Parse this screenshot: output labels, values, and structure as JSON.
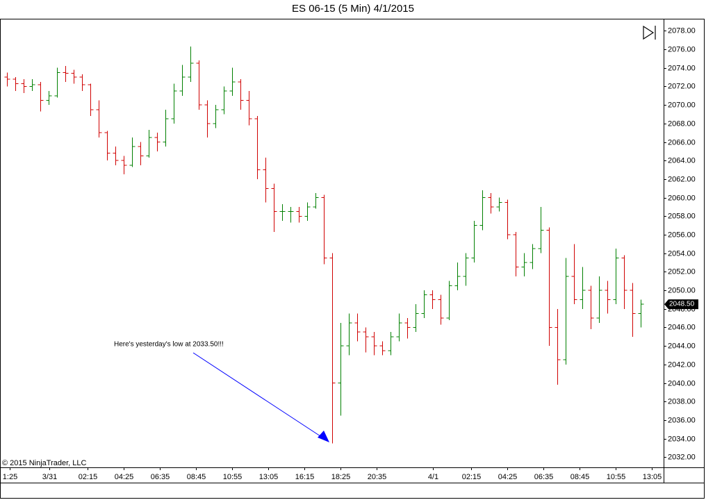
{
  "chart_data": {
    "type": "ohlc",
    "title": "ES 06-15 (5 Min)  4/1/2015",
    "copyright": "© 2015 NinjaTrader, LLC",
    "annotation": "Here's yesterday's low at 2033.50!!!",
    "up_color": "#008000",
    "down_color": "#d00000",
    "x": [
      5,
      11,
      17,
      23,
      29,
      35,
      41,
      47,
      53,
      59,
      65,
      71,
      77,
      83,
      89,
      95,
      101,
      107,
      113,
      119,
      125,
      131,
      137,
      143,
      149,
      155,
      161,
      167,
      173,
      179,
      185,
      191,
      197,
      203,
      209,
      215,
      221,
      227,
      233,
      239,
      245,
      251,
      257,
      263,
      269,
      275,
      281,
      287,
      293,
      299,
      305,
      311,
      317,
      323,
      329,
      335,
      341,
      347,
      353,
      359,
      365,
      371,
      377,
      383,
      389,
      395,
      401,
      407,
      413,
      419,
      425,
      431,
      437,
      443,
      449,
      455,
      461
    ],
    "open": [
      2073.0,
      2072.8,
      2072.3,
      2072.0,
      2072.2,
      2070.5,
      2071.0,
      2073.5,
      2073.4,
      2073.0,
      2072.2,
      2069.5,
      2067.0,
      2064.8,
      2064.0,
      2063.5,
      2065.5,
      2064.5,
      2066.5,
      2066.0,
      2068.5,
      2071.5,
      2073.0,
      2074.5,
      2070.0,
      2068.0,
      2069.5,
      2071.5,
      2072.5,
      2070.5,
      2068.5,
      2063.0,
      2061.0,
      2058.5,
      2058.5,
      2058.5,
      2058.0,
      2059.0,
      2060.0,
      2053.5,
      2040.0,
      2044.0,
      2046.5,
      2045.5,
      2045.0,
      2044.0,
      2043.5,
      2045.0,
      2046.5,
      2046.0,
      2047.5,
      2049.5,
      2049.0,
      2047.0,
      2050.5,
      2051.5,
      2053.5,
      2057.0,
      2060.0,
      2059.0,
      2059.5,
      2056.0,
      2052.5,
      2053.0,
      2054.5,
      2056.5,
      2046.0,
      2042.5,
      2051.5,
      2049.0,
      2050.0,
      2047.0,
      2050.0,
      2049.0,
      2053.5,
      2050.0,
      2047.5
    ],
    "high": [
      2073.5,
      2073.0,
      2072.8,
      2072.8,
      2072.5,
      2071.5,
      2074.0,
      2074.2,
      2073.8,
      2073.3,
      2072.3,
      2070.5,
      2067.2,
      2065.5,
      2064.5,
      2066.5,
      2066.0,
      2067.3,
      2067.0,
      2069.5,
      2072.3,
      2074.3,
      2076.3,
      2074.8,
      2070.5,
      2070.0,
      2072.0,
      2074.0,
      2072.8,
      2071.5,
      2068.8,
      2064.3,
      2061.5,
      2059.3,
      2059.0,
      2059.0,
      2059.5,
      2060.5,
      2060.3,
      2054.0,
      2046.5,
      2047.5,
      2047.5,
      2046.0,
      2045.5,
      2044.5,
      2045.5,
      2047.5,
      2047.0,
      2048.5,
      2050.0,
      2050.0,
      2049.5,
      2051.0,
      2053.0,
      2054.0,
      2057.5,
      2060.8,
      2060.5,
      2060.0,
      2059.8,
      2056.3,
      2054.0,
      2055.0,
      2059.0,
      2056.8,
      2048.0,
      2053.5,
      2055.0,
      2052.5,
      2050.5,
      2051.5,
      2051.0,
      2054.5,
      2053.8,
      2050.8,
      2049.0
    ],
    "low": [
      2072.0,
      2071.5,
      2071.3,
      2071.5,
      2069.3,
      2070.0,
      2070.8,
      2072.5,
      2072.3,
      2071.5,
      2068.8,
      2066.5,
      2064.0,
      2063.5,
      2062.5,
      2063.3,
      2063.5,
      2064.3,
      2065.0,
      2065.5,
      2068.0,
      2071.0,
      2072.5,
      2069.5,
      2066.5,
      2067.5,
      2069.0,
      2071.0,
      2069.5,
      2067.8,
      2062.0,
      2059.5,
      2056.3,
      2057.5,
      2057.3,
      2057.3,
      2057.5,
      2058.8,
      2052.8,
      2033.5,
      2036.5,
      2043.0,
      2044.5,
      2043.3,
      2043.0,
      2043.0,
      2043.0,
      2044.5,
      2044.8,
      2045.5,
      2047.0,
      2048.0,
      2046.3,
      2046.8,
      2050.0,
      2050.5,
      2053.0,
      2056.5,
      2058.3,
      2058.5,
      2055.5,
      2051.5,
      2051.5,
      2052.3,
      2054.0,
      2044.0,
      2039.8,
      2042.0,
      2048.5,
      2048.0,
      2045.8,
      2046.5,
      2047.5,
      2048.5,
      2048.0,
      2045.0,
      2046.0
    ],
    "close": [
      2072.8,
      2072.3,
      2072.0,
      2072.2,
      2070.5,
      2071.0,
      2073.5,
      2073.4,
      2073.0,
      2072.2,
      2069.5,
      2067.0,
      2064.8,
      2064.0,
      2063.5,
      2065.5,
      2064.5,
      2066.5,
      2066.0,
      2068.5,
      2071.5,
      2073.0,
      2074.5,
      2070.0,
      2068.0,
      2069.5,
      2071.5,
      2072.5,
      2070.5,
      2068.5,
      2063.0,
      2061.0,
      2058.5,
      2058.5,
      2058.5,
      2058.0,
      2059.0,
      2060.0,
      2053.5,
      2040.0,
      2044.0,
      2046.5,
      2045.5,
      2045.0,
      2044.0,
      2043.5,
      2045.0,
      2046.5,
      2046.0,
      2047.5,
      2049.5,
      2049.0,
      2047.0,
      2050.5,
      2051.5,
      2053.5,
      2057.0,
      2060.0,
      2059.0,
      2059.5,
      2056.0,
      2052.5,
      2053.0,
      2054.5,
      2056.5,
      2046.0,
      2042.5,
      2051.5,
      2049.0,
      2050.0,
      2047.0,
      2050.0,
      2049.0,
      2053.5,
      2050.0,
      2047.5,
      2048.5
    ],
    "last_price": {
      "value": 2048.5,
      "label": "2048.50"
    },
    "xlim": [
      0,
      477.5
    ],
    "xticks": [
      {
        "value": 7,
        "label": "1:25"
      },
      {
        "value": 35.5,
        "label": "3/31"
      },
      {
        "value": 63,
        "label": "02:15"
      },
      {
        "value": 89,
        "label": "04:25"
      },
      {
        "value": 115,
        "label": "06:35"
      },
      {
        "value": 141,
        "label": "08:45"
      },
      {
        "value": 167,
        "label": "10:55"
      },
      {
        "value": 193,
        "label": "13:05"
      },
      {
        "value": 219,
        "label": "16:15"
      },
      {
        "value": 245,
        "label": "18:25"
      },
      {
        "value": 271,
        "label": "20:35"
      },
      {
        "value": 311.5,
        "label": "4/1"
      },
      {
        "value": 339,
        "label": "02:15"
      },
      {
        "value": 365,
        "label": "04:25"
      },
      {
        "value": 391,
        "label": "06:35"
      },
      {
        "value": 417,
        "label": "08:45"
      },
      {
        "value": 443,
        "label": "10:55"
      },
      {
        "value": 469,
        "label": "13:05"
      }
    ],
    "ylim": [
      2030.9,
      2079.3
    ],
    "yticks": [
      {
        "value": 2032,
        "label": "2032.00"
      },
      {
        "value": 2034,
        "label": "2034.00"
      },
      {
        "value": 2036,
        "label": "2036.00"
      },
      {
        "value": 2038,
        "label": "2038.00"
      },
      {
        "value": 2040,
        "label": "2040.00"
      },
      {
        "value": 2042,
        "label": "2042.00"
      },
      {
        "value": 2044,
        "label": "2044.00"
      },
      {
        "value": 2046,
        "label": "2046.00"
      },
      {
        "value": 2048,
        "label": "2048.00"
      },
      {
        "value": 2050,
        "label": "2050.00"
      },
      {
        "value": 2052,
        "label": "2052.00"
      },
      {
        "value": 2054,
        "label": "2054.00"
      },
      {
        "value": 2056,
        "label": "2056.00"
      },
      {
        "value": 2058,
        "label": "2058.00"
      },
      {
        "value": 2060,
        "label": "2060.00"
      },
      {
        "value": 2062,
        "label": "2062.00"
      },
      {
        "value": 2064,
        "label": "2064.00"
      },
      {
        "value": 2066,
        "label": "2066.00"
      },
      {
        "value": 2068,
        "label": "2068.00"
      },
      {
        "value": 2070,
        "label": "2070.00"
      },
      {
        "value": 2072,
        "label": "2072.00"
      },
      {
        "value": 2074,
        "label": "2074.00"
      },
      {
        "value": 2076,
        "label": "2076.00"
      },
      {
        "value": 2078,
        "label": "2078.00"
      }
    ]
  }
}
